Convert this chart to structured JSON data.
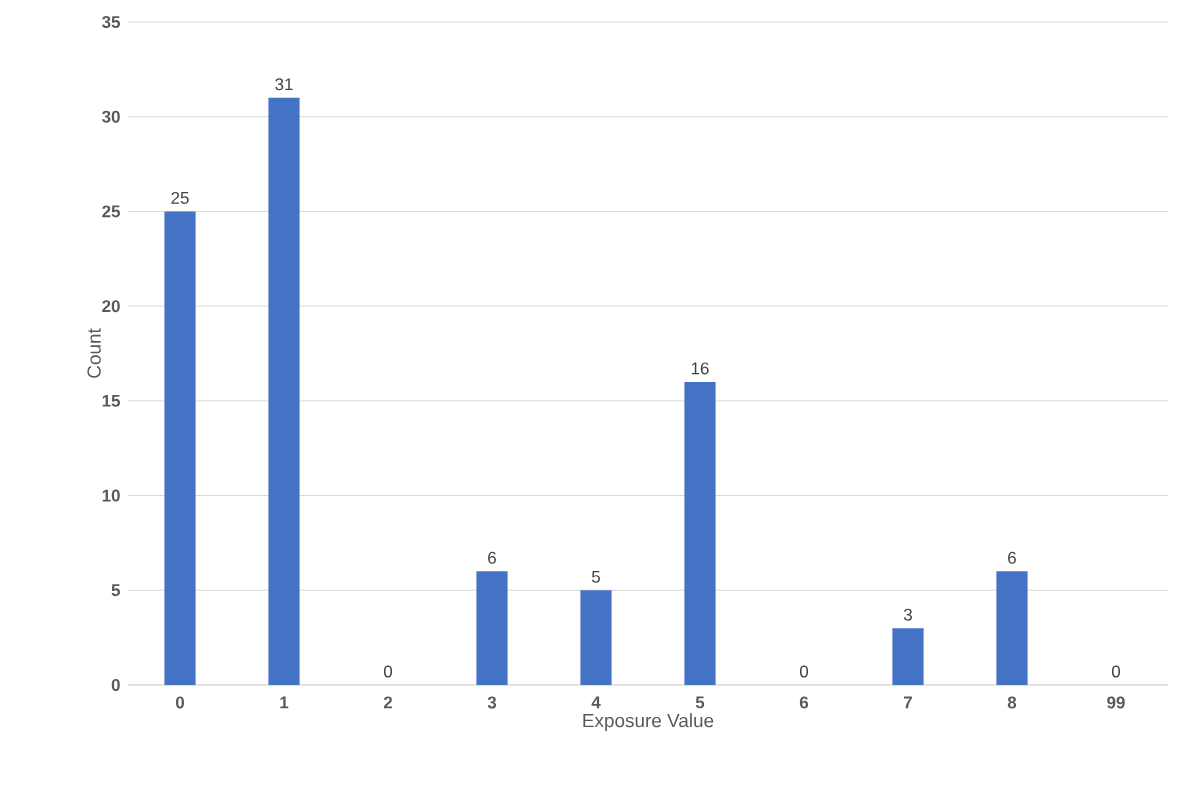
{
  "chart_data": {
    "type": "bar",
    "xlabel": "Exposure Value",
    "ylabel": "Count",
    "categories": [
      "0",
      "1",
      "2",
      "3",
      "4",
      "5",
      "6",
      "7",
      "8",
      "99"
    ],
    "values": [
      25,
      31,
      0,
      6,
      5,
      16,
      0,
      3,
      6,
      0
    ],
    "color": "#4472c4",
    "ylim": [
      0,
      35
    ],
    "yticks": [
      0,
      5,
      10,
      15,
      20,
      25,
      30,
      35
    ],
    "grid": "y",
    "data_labels": true
  }
}
